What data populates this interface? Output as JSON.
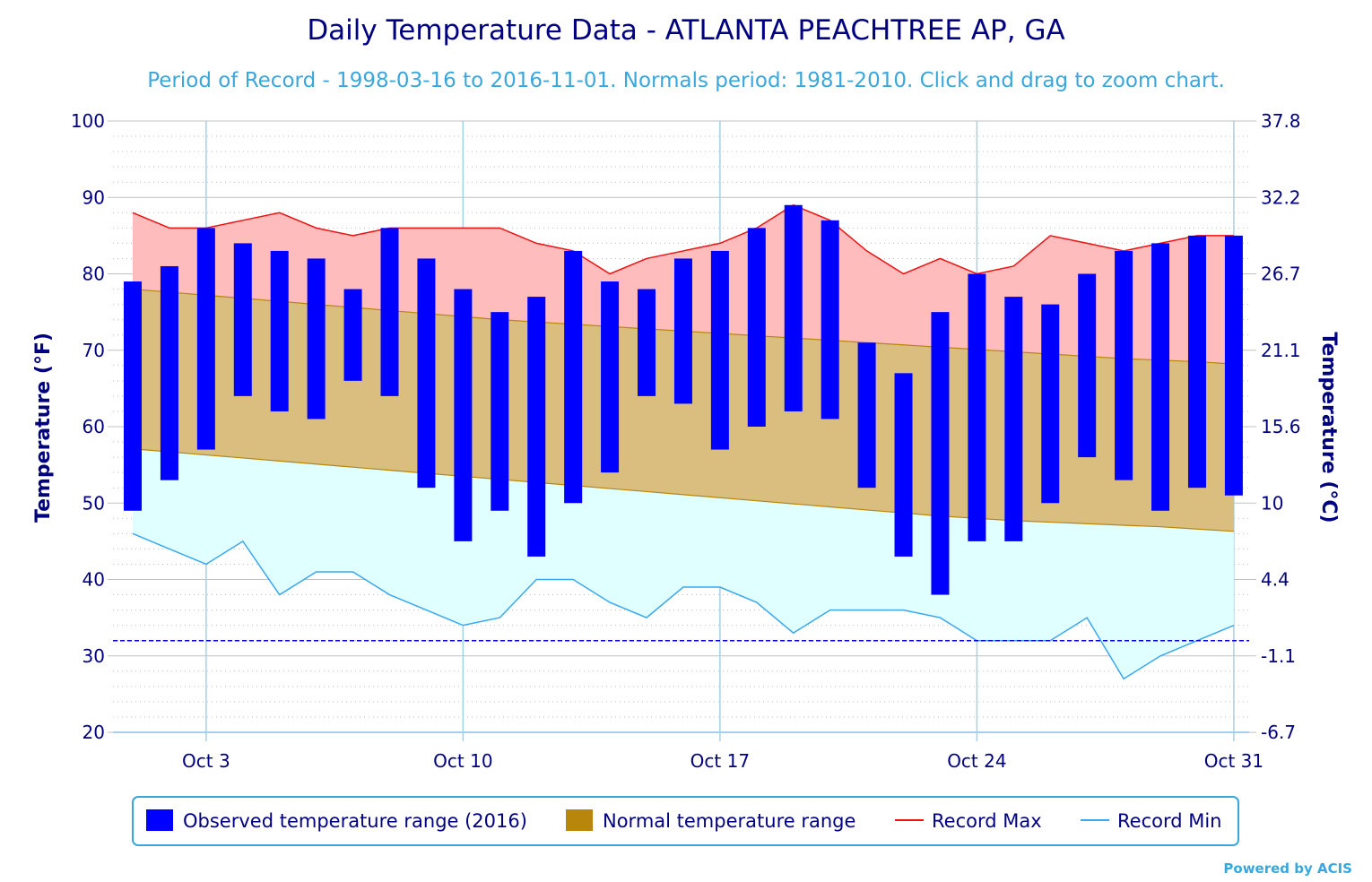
{
  "chart_data": {
    "type": "bar",
    "title": "Daily Temperature Data - ATLANTA PEACHTREE AP, GA",
    "subtitle": "Period of Record - 1998-03-16 to 2016-11-01. Normals period: 1981-2010. Click and drag to zoom chart.",
    "ylabel_left": "Temperature (°F)",
    "ylabel_right": "Temperature (°C)",
    "ylim": [
      20,
      100
    ],
    "y_ticks_left": [
      "20",
      "30",
      "40",
      "50",
      "60",
      "70",
      "80",
      "90",
      "100"
    ],
    "y_ticks_right": [
      "-6.7",
      "-1.1",
      "4.4",
      "10",
      "15.6",
      "21.1",
      "26.7",
      "32.2",
      "37.8"
    ],
    "x_tick_labels": [
      {
        "day": 3,
        "label": "Oct 3"
      },
      {
        "day": 10,
        "label": "Oct 10"
      },
      {
        "day": 17,
        "label": "Oct 17"
      },
      {
        "day": 24,
        "label": "Oct 24"
      },
      {
        "day": 31,
        "label": "Oct 31"
      }
    ],
    "freezing_line": 32,
    "days": [
      1,
      2,
      3,
      4,
      5,
      6,
      7,
      8,
      9,
      10,
      11,
      12,
      13,
      14,
      15,
      16,
      17,
      18,
      19,
      20,
      21,
      22,
      23,
      24,
      25,
      26,
      27,
      28,
      29,
      30,
      31
    ],
    "observed_low": [
      49,
      53,
      57,
      64,
      62,
      61,
      66,
      64,
      52,
      45,
      49,
      43,
      50,
      54,
      64,
      63,
      57,
      60,
      62,
      61,
      52,
      43,
      38,
      45,
      45,
      50,
      56,
      53,
      49,
      52,
      51
    ],
    "observed_high": [
      79,
      81,
      86,
      84,
      83,
      82,
      78,
      86,
      82,
      78,
      75,
      77,
      83,
      79,
      78,
      82,
      83,
      86,
      89,
      87,
      71,
      67,
      75,
      80,
      77,
      76,
      80,
      83,
      84,
      85,
      85
    ],
    "normal_low": [
      57.1,
      56.7,
      56.3,
      55.9,
      55.5,
      55.1,
      54.7,
      54.3,
      53.9,
      53.5,
      53.1,
      52.7,
      52.3,
      51.9,
      51.5,
      51.1,
      50.7,
      50.3,
      49.9,
      49.5,
      49.1,
      48.7,
      48.3,
      48.0,
      47.7,
      47.5,
      47.3,
      47.1,
      46.9,
      46.6,
      46.3
    ],
    "normal_high": [
      78.0,
      77.6,
      77.2,
      76.8,
      76.4,
      76.0,
      75.6,
      75.2,
      74.8,
      74.4,
      74.0,
      73.7,
      73.4,
      73.1,
      72.8,
      72.5,
      72.2,
      71.9,
      71.6,
      71.3,
      71.0,
      70.7,
      70.4,
      70.1,
      69.8,
      69.5,
      69.2,
      68.9,
      68.7,
      68.5,
      68.2
    ],
    "record_max": [
      88,
      86,
      86,
      87,
      88,
      86,
      85,
      86,
      86,
      86,
      86,
      84,
      83,
      80,
      82,
      83,
      84,
      86,
      89,
      87,
      83,
      80,
      82,
      80,
      81,
      85,
      84,
      83,
      84,
      85,
      85
    ],
    "record_min": [
      46,
      44,
      42,
      45,
      38,
      41,
      41,
      38,
      36,
      34,
      35,
      40,
      40,
      37,
      35,
      39,
      39,
      37,
      33,
      36,
      36,
      36,
      35,
      32,
      32,
      32,
      35,
      27,
      30,
      32,
      34
    ],
    "legend": [
      {
        "label": "Observed temperature range (2016)",
        "type": "box",
        "color": "#0000ff"
      },
      {
        "label": "Normal temperature range",
        "type": "box",
        "color": "#b8860b"
      },
      {
        "label": "Record Max",
        "type": "line",
        "color": "#ee1111"
      },
      {
        "label": "Record Min",
        "type": "line",
        "color": "#3aa7ee"
      }
    ],
    "colors": {
      "observed": "#0000ff",
      "normal_fill": "#d9be7f",
      "normal_line": "#b8860b",
      "record_max_fill": "#ffbcbc",
      "record_max_line": "#ee1111",
      "record_min_fill": "#e0ffff",
      "record_min_line": "#3aa7ee",
      "freezing_line": "#0000cc"
    },
    "credit": "Powered by ACIS"
  }
}
